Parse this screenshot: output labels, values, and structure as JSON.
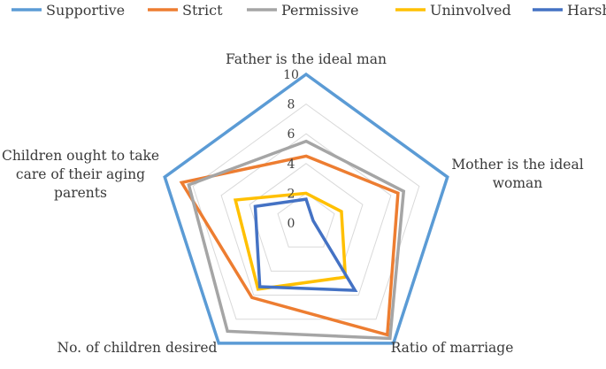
{
  "chart_data": {
    "type": "radar",
    "title": "",
    "axes": [
      "Father is the ideal man",
      "Mother is the ideal woman",
      "Ratio of marriage",
      "No. of children desired",
      "Children ought to take care of their aging parents"
    ],
    "axis_label_lines": [
      [
        "Father is the ideal man"
      ],
      [
        "Mother is the ideal",
        "woman"
      ],
      [
        "Ratio of marriage"
      ],
      [
        "No. of children desired"
      ],
      [
        "Children ought to take",
        "care of their aging",
        "parents"
      ]
    ],
    "range": [
      0,
      10
    ],
    "ticks": [
      0,
      2,
      4,
      6,
      8,
      10
    ],
    "tick_labels": [
      "0",
      "2",
      "4",
      "6",
      "8",
      "10"
    ],
    "grid": true,
    "legend_position": "top",
    "series": [
      {
        "name": "Supportive",
        "color": "#5B9BD5",
        "values": [
          10,
          10,
          10,
          10,
          10
        ]
      },
      {
        "name": "Strict",
        "color": "#ED7D31",
        "values": [
          4.5,
          6.5,
          9.3,
          6.2,
          8.8
        ]
      },
      {
        "name": "Permissive",
        "color": "#A5A5A5",
        "values": [
          5.5,
          6.9,
          9.6,
          9.0,
          8.3
        ]
      },
      {
        "name": "Uninvolved",
        "color": "#FFC000",
        "values": [
          2.0,
          2.5,
          4.5,
          5.5,
          5.0
        ]
      },
      {
        "name": "Harsh",
        "color": "#4472C4",
        "values": [
          1.6,
          0.5,
          5.6,
          5.3,
          3.6
        ]
      }
    ]
  }
}
